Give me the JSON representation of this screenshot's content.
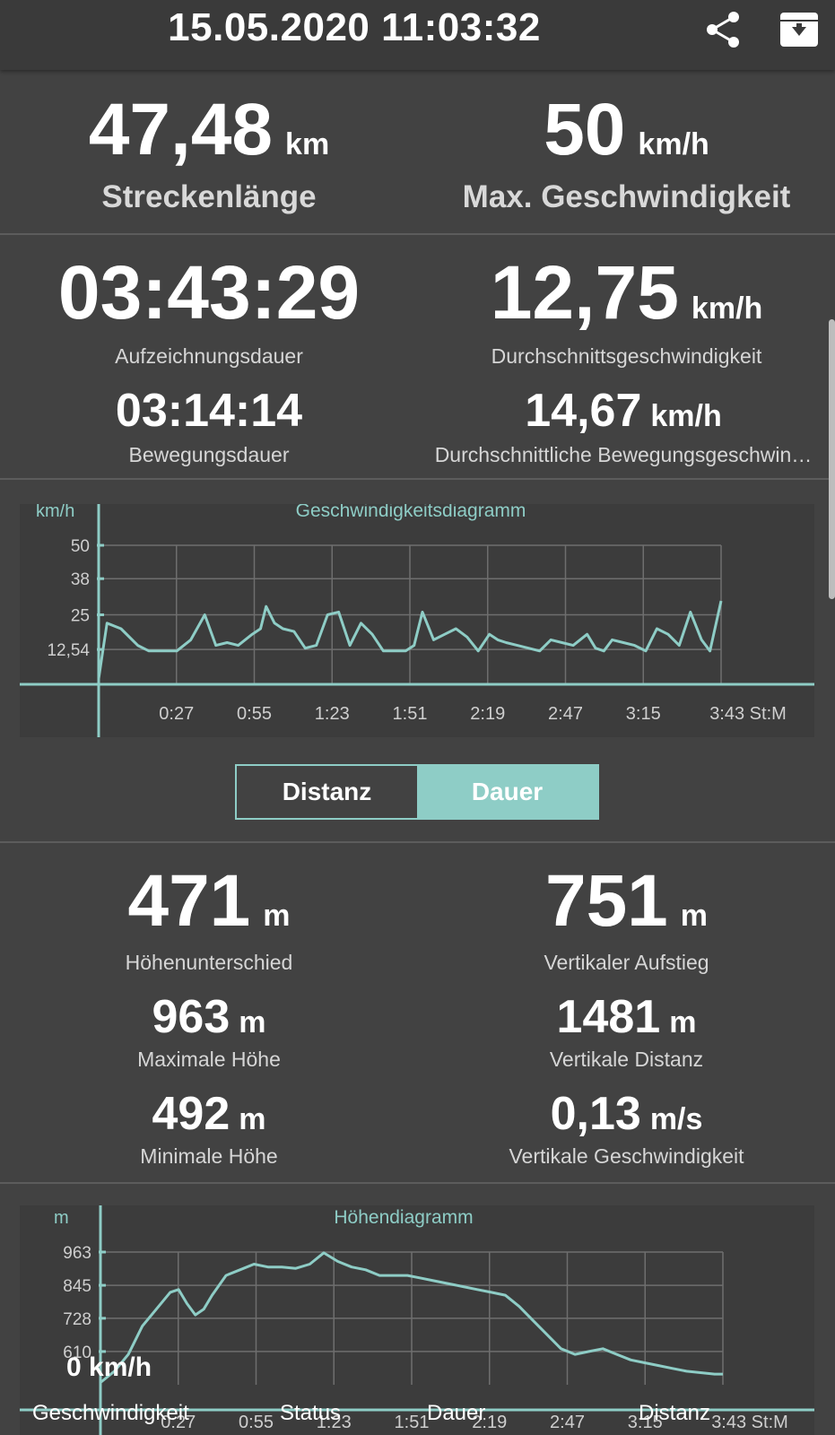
{
  "header": {
    "title": "15.05.2020 11:03:32",
    "share_icon": "share-icon",
    "archive_icon": "archive-icon"
  },
  "stats_top": {
    "distance": {
      "value": "47,48",
      "unit": "km",
      "label": "Streckenlänge"
    },
    "max_speed": {
      "value": "50",
      "unit": "km/h",
      "label": "Max. Geschwindigkeit"
    }
  },
  "stats_time": {
    "recording_duration": {
      "value": "03:43:29",
      "label": "Aufzeichnungsdauer"
    },
    "avg_speed": {
      "value": "12,75",
      "unit": "km/h",
      "label": "Durchschnittsgeschwindigkeit"
    },
    "moving_duration": {
      "value": "03:14:14",
      "label": "Bewegungsdauer"
    },
    "avg_moving_speed": {
      "value": "14,67",
      "unit": "km/h",
      "label": "Durchschnittliche Bewegungsgeschwin…"
    }
  },
  "speed_chart": {
    "title": "Geschwindigkeitsdiagramm",
    "y_unit": "km/h",
    "y_ticks": [
      "50",
      "38",
      "25",
      "12,54"
    ],
    "x_ticks": [
      "0:27",
      "0:55",
      "1:23",
      "1:51",
      "2:19",
      "2:47",
      "3:15",
      "3:43"
    ],
    "x_unit": "St:M",
    "colors": {
      "line": "#8ecdc6",
      "grid": "#777777"
    }
  },
  "toggle": {
    "distance_label": "Distanz",
    "duration_label": "Dauer",
    "selected": "Dauer"
  },
  "stats_elevation": {
    "height_diff": {
      "value": "471",
      "unit": "m",
      "label": "Höhenunterschied"
    },
    "vertical_ascent": {
      "value": "751",
      "unit": "m",
      "label": "Vertikaler Aufstieg"
    },
    "max_height": {
      "value": "963",
      "unit": "m",
      "label": "Maximale Höhe"
    },
    "vertical_distance": {
      "value": "1481",
      "unit": "m",
      "label": "Vertikale Distanz"
    },
    "min_height": {
      "value": "492",
      "unit": "m",
      "label": "Minimale Höhe"
    },
    "vertical_speed": {
      "value": "0,13",
      "unit": "m/s",
      "label": "Vertikale Geschwindigkeit"
    }
  },
  "elevation_chart": {
    "title": "Höhendiagramm",
    "y_unit": "m",
    "y_ticks": [
      "963",
      "845",
      "728",
      "610"
    ],
    "x_ticks": [
      "0:27",
      "0:55",
      "1:23",
      "1:51",
      "2:19",
      "2:47",
      "3:15",
      "3:43"
    ],
    "x_unit": "St:M"
  },
  "overlay": {
    "current_speed": "0 km/h"
  },
  "bottom_nav": {
    "speed": "Geschwindigkeit",
    "status": "Status",
    "duration": "Dauer",
    "distance": "Distanz"
  },
  "chart_data": [
    {
      "type": "line",
      "title": "Geschwindigkeitsdiagramm",
      "ylabel": "km/h",
      "xlabel": "St:M",
      "ylim": [
        0,
        50
      ],
      "x_ticks": [
        "0:27",
        "0:55",
        "1:23",
        "1:51",
        "2:19",
        "2:47",
        "3:15",
        "3:43"
      ],
      "y_ticks": [
        12.54,
        25,
        38,
        50
      ],
      "series": [
        {
          "x": [
            0,
            3,
            8,
            14,
            18,
            22,
            28,
            33,
            38,
            42,
            46,
            50,
            55,
            58,
            60,
            63,
            66,
            70,
            74,
            78,
            82,
            86,
            90,
            94,
            98,
            102,
            105,
            108,
            110,
            113,
            116,
            120,
            124,
            128,
            132,
            136,
            140,
            143,
            146,
            150,
            154,
            158,
            162,
            166,
            170,
            175,
            178,
            181,
            184,
            188,
            192,
            196,
            200,
            204,
            208,
            212,
            216,
            219,
            223
          ],
          "values": [
            2,
            22,
            20,
            14,
            12,
            12,
            12,
            16,
            25,
            14,
            15,
            14,
            18,
            20,
            28,
            22,
            20,
            19,
            13,
            14,
            25,
            26,
            14,
            22,
            18,
            12,
            12,
            12,
            12,
            14,
            26,
            16,
            18,
            20,
            17,
            12,
            18,
            16,
            15,
            14,
            13,
            12,
            16,
            15,
            14,
            18,
            13,
            12,
            16,
            15,
            14,
            12,
            20,
            18,
            14,
            26,
            16,
            12,
            30
          ]
        }
      ]
    },
    {
      "type": "line",
      "title": "Höhendiagramm",
      "ylabel": "m",
      "xlabel": "St:M",
      "ylim": [
        492,
        963
      ],
      "x_ticks": [
        "0:27",
        "0:55",
        "1:23",
        "1:51",
        "2:19",
        "2:47",
        "3:15",
        "3:43"
      ],
      "y_ticks": [
        610,
        728,
        845,
        963
      ],
      "series": [
        {
          "x": [
            0,
            5,
            10,
            15,
            20,
            25,
            28,
            31,
            34,
            37,
            40,
            45,
            50,
            55,
            60,
            65,
            70,
            75,
            80,
            85,
            90,
            95,
            100,
            105,
            110,
            115,
            120,
            125,
            130,
            135,
            140,
            145,
            150,
            155,
            160,
            165,
            170,
            175,
            180,
            185,
            190,
            195,
            200,
            205,
            210,
            215,
            220,
            223
          ],
          "values": [
            500,
            540,
            600,
            700,
            760,
            820,
            830,
            780,
            740,
            760,
            810,
            880,
            900,
            920,
            910,
            910,
            905,
            920,
            960,
            930,
            910,
            900,
            880,
            880,
            880,
            870,
            860,
            850,
            840,
            830,
            820,
            810,
            770,
            720,
            670,
            620,
            600,
            610,
            620,
            600,
            580,
            570,
            560,
            550,
            540,
            535,
            530,
            530
          ]
        }
      ]
    }
  ]
}
